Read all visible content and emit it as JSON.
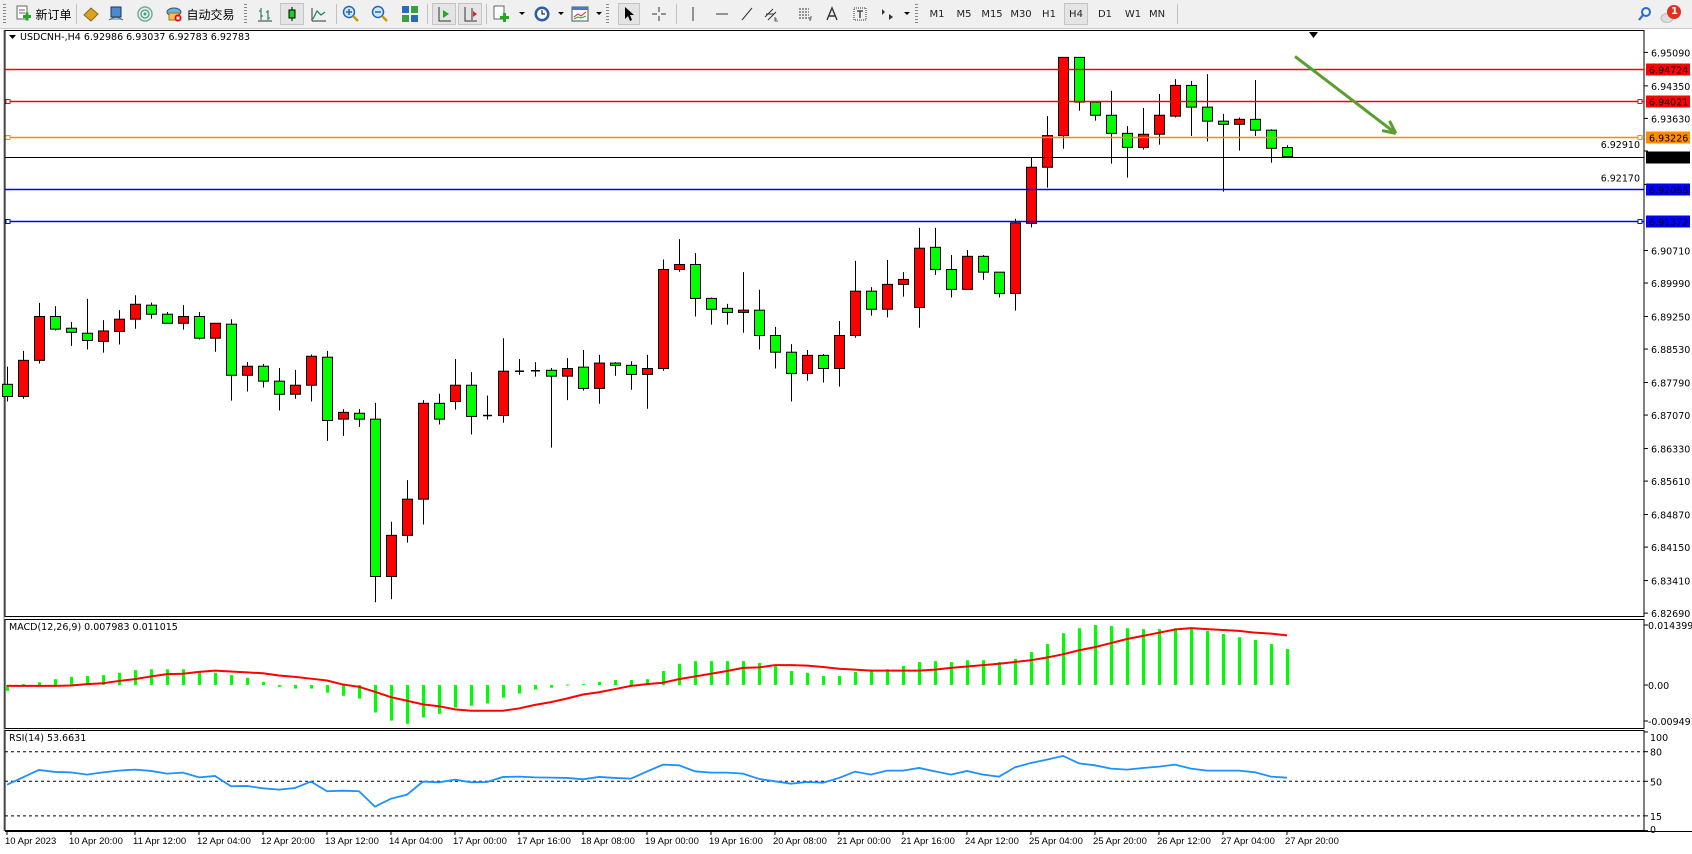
{
  "toolbar": {
    "new_order_label": "新订单",
    "auto_trading_label": "自动交易",
    "timeframes": [
      "M1",
      "M5",
      "M15",
      "M30",
      "H1",
      "H4",
      "D1",
      "W1",
      "MN"
    ],
    "active_timeframe": "H4",
    "notification_count": "1"
  },
  "chart": {
    "header": "USDCNH-,H4  6.92986 6.93037 6.92783 6.92783",
    "bull_color": "#ff0000",
    "bear_color": "#00ff00"
  },
  "chart_data": [
    {
      "type": "candlestick",
      "symbol": "USDCNH-",
      "timeframe": "H4",
      "ylim": [
        6.8269,
        6.9509
      ],
      "y_ticks": [
        "6.95090",
        "6.94350",
        "6.93630",
        "6.92910",
        "6.92170",
        "6.90710",
        "6.89990",
        "6.89250",
        "6.88530",
        "6.87790",
        "6.87070",
        "6.86330",
        "6.85610",
        "6.84870",
        "6.84150",
        "6.83410",
        "6.82690"
      ],
      "x_tick_labels": [
        "10 Apr 2023",
        "10 Apr 20:00",
        "11 Apr 12:00",
        "12 Apr 04:00",
        "12 Apr 20:00",
        "13 Apr 12:00",
        "14 Apr 04:00",
        "17 Apr 00:00",
        "17 Apr 16:00",
        "18 Apr 08:00",
        "19 Apr 00:00",
        "19 Apr 16:00",
        "20 Apr 08:00",
        "21 Apr 00:00",
        "21 Apr 16:00",
        "24 Apr 12:00",
        "25 Apr 04:00",
        "25 Apr 20:00",
        "26 Apr 12:00",
        "27 Apr 04:00",
        "27 Apr 20:00"
      ],
      "ohlc_order": "open,high,low,close",
      "candles": [
        [
          6.8775,
          6.8814,
          6.8737,
          6.8748
        ],
        [
          6.8748,
          6.8849,
          6.8743,
          6.8828
        ],
        [
          6.8828,
          6.8955,
          6.8821,
          6.8925
        ],
        [
          6.8925,
          6.8948,
          6.8894,
          6.8897
        ],
        [
          6.8899,
          6.8913,
          6.886,
          6.889
        ],
        [
          6.8888,
          6.8964,
          6.8852,
          6.8872
        ],
        [
          6.887,
          6.8917,
          6.8845,
          6.8893
        ],
        [
          6.8892,
          6.8939,
          6.8863,
          6.8919
        ],
        [
          6.8919,
          6.8972,
          6.8898,
          6.8952
        ],
        [
          6.895,
          6.8956,
          6.892,
          6.893
        ],
        [
          6.893,
          6.8935,
          6.891,
          6.891
        ],
        [
          6.891,
          6.895,
          6.8896,
          6.8925
        ],
        [
          6.8925,
          6.8935,
          6.8874,
          6.8877
        ],
        [
          6.8877,
          6.891,
          6.8847,
          6.891
        ],
        [
          6.8908,
          6.8919,
          6.8739,
          6.8795
        ],
        [
          6.8795,
          6.8824,
          6.8759,
          6.8815
        ],
        [
          6.8815,
          6.882,
          6.8768,
          6.8782
        ],
        [
          6.8782,
          6.8811,
          6.8717,
          6.8753
        ],
        [
          6.8753,
          6.8807,
          6.8743,
          6.8773
        ],
        [
          6.8773,
          6.8841,
          6.8737,
          6.8837
        ],
        [
          6.8835,
          6.8849,
          6.865,
          6.8695
        ],
        [
          6.8698,
          6.872,
          6.8661,
          6.8713
        ],
        [
          6.8711,
          6.872,
          6.8681,
          6.8698
        ],
        [
          6.8698,
          6.8734,
          6.8293,
          6.835
        ],
        [
          6.835,
          6.8471,
          6.83,
          6.8441
        ],
        [
          6.8441,
          6.8563,
          6.8425,
          6.8521
        ],
        [
          6.8521,
          6.874,
          6.8465,
          6.8733
        ],
        [
          6.8733,
          6.8754,
          6.8686,
          6.8698
        ],
        [
          6.8737,
          6.8831,
          6.8719,
          6.8773
        ],
        [
          6.8773,
          6.8802,
          6.8664,
          6.8704
        ],
        [
          6.8706,
          6.875,
          6.8697,
          6.8706
        ],
        [
          6.8706,
          6.8877,
          6.869,
          6.8804
        ],
        [
          6.8804,
          6.8831,
          6.8796,
          6.8804
        ],
        [
          6.8805,
          6.8824,
          6.8792,
          6.8805
        ],
        [
          6.8806,
          6.8811,
          6.8635,
          6.8793
        ],
        [
          6.8793,
          6.8833,
          6.874,
          6.881
        ],
        [
          6.8813,
          6.8851,
          6.8761,
          6.8766
        ],
        [
          6.8766,
          6.884,
          6.8732,
          6.8822
        ],
        [
          6.8822,
          6.8824,
          6.8794,
          6.8817
        ],
        [
          6.8817,
          6.8826,
          6.8763,
          6.8797
        ],
        [
          6.8797,
          6.884,
          6.8721,
          6.881
        ],
        [
          6.881,
          6.9051,
          6.8805,
          6.9029
        ],
        [
          6.9029,
          6.9096,
          6.9024,
          6.904
        ],
        [
          6.904,
          6.9065,
          6.8925,
          6.8965
        ],
        [
          6.8965,
          6.8967,
          6.8907,
          6.8941
        ],
        [
          6.8943,
          6.8953,
          6.8907,
          6.8934
        ],
        [
          6.8934,
          6.9023,
          6.8889,
          6.8939
        ],
        [
          6.8939,
          6.8984,
          6.8852,
          6.8883
        ],
        [
          6.8883,
          6.8902,
          6.881,
          6.8846
        ],
        [
          6.8846,
          6.8864,
          6.8737,
          6.8799
        ],
        [
          6.8799,
          6.8851,
          6.8783,
          6.8839
        ],
        [
          6.8839,
          6.8842,
          6.8779,
          6.881
        ],
        [
          6.881,
          6.8915,
          6.877,
          6.8883
        ],
        [
          6.8883,
          6.9048,
          6.8878,
          6.8981
        ],
        [
          6.8981,
          6.899,
          6.8927,
          6.8941
        ],
        [
          6.8941,
          6.905,
          6.8923,
          6.8996
        ],
        [
          6.8996,
          6.9023,
          6.8969,
          6.9007
        ],
        [
          6.8945,
          6.9121,
          6.89,
          6.9076
        ],
        [
          6.9078,
          6.9121,
          6.9017,
          6.9029
        ],
        [
          6.9029,
          6.9061,
          6.8967,
          6.8985
        ],
        [
          6.8985,
          6.9072,
          6.8985,
          6.9058
        ],
        [
          6.9058,
          6.9061,
          6.9006,
          6.9023
        ],
        [
          6.9023,
          6.9023,
          6.8967,
          6.8976
        ],
        [
          6.8976,
          6.9141,
          6.8938,
          6.9132
        ],
        [
          6.9131,
          6.9277,
          6.9122,
          6.9255
        ],
        [
          6.9255,
          6.9368,
          6.921,
          6.9325
        ],
        [
          6.9325,
          6.9498,
          6.9296,
          6.9498
        ],
        [
          6.9498,
          6.9498,
          6.938,
          6.9399
        ],
        [
          6.9399,
          6.9399,
          6.9358,
          6.937
        ],
        [
          6.937,
          6.9424,
          6.9263,
          6.933
        ],
        [
          6.933,
          6.9346,
          6.9232,
          6.9299
        ],
        [
          6.9299,
          6.9386,
          6.9294,
          6.9328
        ],
        [
          6.9328,
          6.9417,
          6.9305,
          6.937
        ],
        [
          6.9368,
          6.945,
          6.9365,
          6.9436
        ],
        [
          6.9436,
          6.9446,
          6.9324,
          6.9388
        ],
        [
          6.9388,
          6.9461,
          6.9312,
          6.9357
        ],
        [
          6.9357,
          6.9373,
          6.9201,
          6.935
        ],
        [
          6.935,
          6.9365,
          6.9292,
          6.9361
        ],
        [
          6.9361,
          6.9448,
          6.9324,
          6.9337
        ],
        [
          6.9337,
          6.9339,
          6.9265,
          6.9297
        ],
        [
          6.92986,
          6.93037,
          6.92783,
          6.92783
        ]
      ],
      "horizontal_lines": [
        {
          "price": "6.94724",
          "color": "#ff0000",
          "marker": false
        },
        {
          "price": "6.94021",
          "color": "#ff0000",
          "marker": true
        },
        {
          "price": "6.93226",
          "color": "#ff8c00",
          "marker": true
        },
        {
          "price": "6.92783",
          "color": "#000000",
          "marker": false,
          "bid_line": true
        },
        {
          "price": "6.92066",
          "color": "#0000ff",
          "marker": false
        },
        {
          "price": "6.91372",
          "color": "#0000ff",
          "marker": true
        }
      ],
      "arrow": {
        "color": "#5a9e2f",
        "from_candle": 80.5,
        "from_price": 6.95,
        "to_candle": 86.8,
        "to_price": 6.933
      }
    },
    {
      "type": "bar+line",
      "label": "MACD(12,26,9) 0.007983 0.011015",
      "ylim": [
        -0.009491,
        0.014399
      ],
      "y_ticks": [
        "0.014399",
        "0.00",
        "-0.009491"
      ],
      "histogram_color": "#00ff00",
      "signal_color": "#ff0000",
      "histogram": [
        -0.0013,
        0.0002,
        0.0006,
        0.0013,
        0.0018,
        0.002,
        0.0022,
        0.0027,
        0.0033,
        0.0035,
        0.0035,
        0.0035,
        0.003,
        0.0027,
        0.0022,
        0.0016,
        0.0007,
        -0.0004,
        -0.0008,
        -0.0008,
        -0.0017,
        -0.0024,
        -0.003,
        -0.0061,
        -0.0079,
        -0.0086,
        -0.0072,
        -0.0064,
        -0.005,
        -0.0046,
        -0.0041,
        -0.0028,
        -0.0019,
        -0.001,
        -0.0006,
        0.0001,
        0.0002,
        0.0007,
        0.0011,
        0.0011,
        0.0013,
        0.0031,
        0.0047,
        0.0053,
        0.0053,
        0.0053,
        0.0053,
        0.0049,
        0.0042,
        0.0031,
        0.0027,
        0.002,
        0.002,
        0.0029,
        0.0033,
        0.0035,
        0.0042,
        0.0051,
        0.0053,
        0.0051,
        0.0055,
        0.0055,
        0.0051,
        0.0058,
        0.0073,
        0.0091,
        0.0115,
        0.0126,
        0.0133,
        0.0131,
        0.0126,
        0.0124,
        0.0124,
        0.0126,
        0.0124,
        0.012,
        0.0113,
        0.0106,
        0.01,
        0.0091,
        0.007983
      ],
      "signal": [
        -0.0002,
        -0.0002,
        -0.0002,
        -0.0002,
        -0.0001,
        0.0002,
        0.0004,
        0.0009,
        0.0013,
        0.0019,
        0.0024,
        0.0025,
        0.0029,
        0.0032,
        0.003,
        0.0028,
        0.0026,
        0.0021,
        0.0018,
        0.0014,
        0.001,
        0.0001,
        -0.0004,
        -0.0015,
        -0.0027,
        -0.0035,
        -0.0043,
        -0.0047,
        -0.0054,
        -0.0057,
        -0.0057,
        -0.0057,
        -0.0052,
        -0.0044,
        -0.0038,
        -0.003,
        -0.0021,
        -0.0016,
        -0.0009,
        -0.0002,
        0.0002,
        0.0005,
        0.0013,
        0.0019,
        0.0025,
        0.0031,
        0.0038,
        0.0039,
        0.0044,
        0.0044,
        0.0043,
        0.004,
        0.0036,
        0.0034,
        0.0032,
        0.0032,
        0.0032,
        0.0032,
        0.0034,
        0.0038,
        0.0041,
        0.0044,
        0.0047,
        0.0051,
        0.0055,
        0.0061,
        0.0068,
        0.0077,
        0.0084,
        0.0093,
        0.0102,
        0.0109,
        0.0116,
        0.0123,
        0.0126,
        0.0124,
        0.0122,
        0.012,
        0.0116,
        0.0114,
        0.011015
      ]
    },
    {
      "type": "line",
      "label": "RSI(14) 53.6631",
      "ylim": [
        0,
        100
      ],
      "y_ticks": [
        "100",
        "80",
        "50",
        "15",
        "0"
      ],
      "levels": [
        80,
        50,
        15
      ],
      "line_color": "#1e90ff",
      "values": [
        46.6,
        54,
        61.5,
        59.5,
        59,
        56.8,
        59,
        60.8,
        61.8,
        60.5,
        57.8,
        58.8,
        54,
        55.4,
        45,
        45.3,
        42.9,
        41.6,
        43.2,
        49.7,
        39.9,
        40.5,
        39.9,
        24.3,
        32.4,
        36.5,
        49.7,
        49,
        51.7,
        49,
        49.3,
        54.4,
        54.7,
        54,
        53.7,
        53.4,
        52,
        54.4,
        53.4,
        52.7,
        60,
        66.9,
        66.2,
        60.1,
        58.8,
        58.8,
        57.8,
        52.4,
        50,
        47.6,
        49.3,
        48.6,
        53.4,
        59.8,
        56.8,
        60.8,
        60.8,
        63.5,
        60.1,
        56.8,
        60.5,
        56.8,
        54.7,
        64.2,
        68.6,
        72,
        75.7,
        68.2,
        66.2,
        62.8,
        61.8,
        63.5,
        64.9,
        66.9,
        62.8,
        60.8,
        60.8,
        60.8,
        59.1,
        54.7,
        53.6631
      ]
    }
  ]
}
